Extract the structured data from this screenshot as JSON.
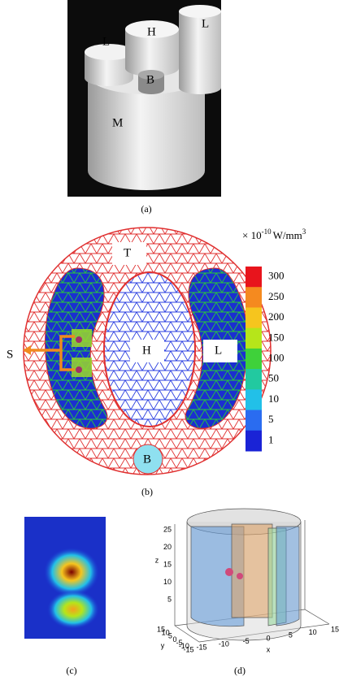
{
  "panel_a": {
    "caption": "(a)",
    "labels": [
      "L",
      "H",
      "L",
      "B",
      "M"
    ]
  },
  "panel_b": {
    "caption": "(b)",
    "unit": {
      "prefix": "× 10",
      "exponent": "-10",
      "unit": "W/mm",
      "unit_exponent": "3"
    },
    "colorbar": {
      "labels": [
        "300",
        "250",
        "200",
        "150",
        "100",
        "50",
        "10",
        "5",
        "1"
      ],
      "colors": [
        "#e8141c",
        "#f58a1f",
        "#f6c51e",
        "#b6e51a",
        "#3fd13a",
        "#22c9a0",
        "#22c0e8",
        "#2a6cf0",
        "#1a23d6"
      ]
    },
    "region_labels": [
      "T",
      "H",
      "L",
      "S",
      "B"
    ]
  },
  "panel_c": {
    "caption": "(c)"
  },
  "panel_d": {
    "caption": "(d)",
    "axes": {
      "z": {
        "label": "z",
        "ticks": [
          "25",
          "20",
          "15",
          "10",
          "5"
        ]
      },
      "y": {
        "label": "y",
        "ticks": [
          "15",
          "10",
          "5",
          "0",
          "-5",
          "-10",
          "-15"
        ]
      },
      "x": {
        "label": "x",
        "ticks": [
          "-15",
          "-10",
          "-5",
          "0",
          "5",
          "10",
          "15"
        ]
      }
    }
  }
}
